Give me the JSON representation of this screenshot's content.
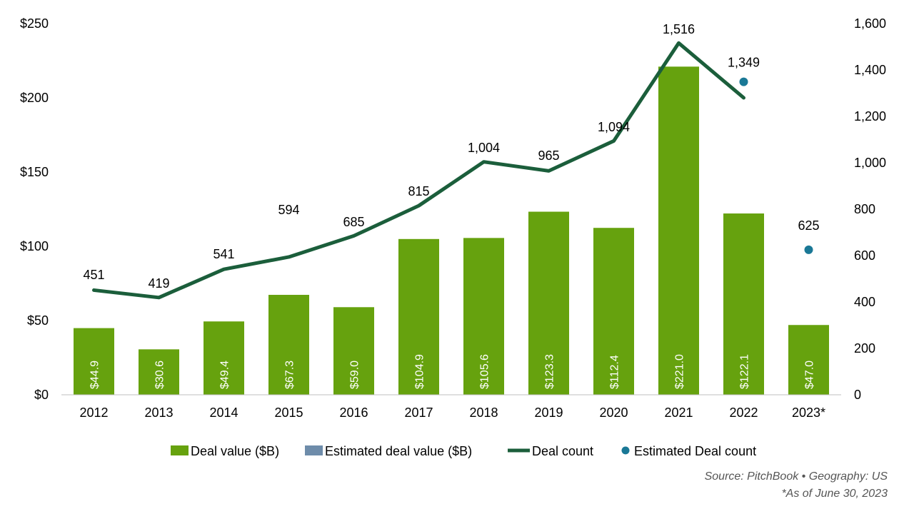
{
  "chart_data": {
    "type": "bar",
    "categories": [
      "2012",
      "2013",
      "2014",
      "2015",
      "2016",
      "2017",
      "2018",
      "2019",
      "2020",
      "2021",
      "2022",
      "2023*"
    ],
    "series": [
      {
        "name": "Deal value ($B)",
        "type": "bar",
        "axis": "left",
        "color": "#66a20e",
        "values": [
          44.9,
          30.6,
          49.4,
          67.3,
          59.0,
          104.9,
          105.6,
          123.3,
          112.4,
          221.0,
          122.1,
          47.0
        ],
        "labels": [
          "$44.9",
          "$30.6",
          "$49.4",
          "$67.3",
          "$59.0",
          "$104.9",
          "$105.6",
          "$123.3",
          "$112.4",
          "$221.0",
          "$122.1",
          "$47.0"
        ]
      },
      {
        "name": "Estimated deal value ($B)",
        "type": "bar",
        "axis": "left",
        "color": "#6e8caa",
        "values": [
          null,
          null,
          null,
          null,
          null,
          null,
          null,
          null,
          null,
          null,
          null,
          null
        ]
      },
      {
        "name": "Deal count",
        "type": "line",
        "axis": "right",
        "color": "#1b5e3b",
        "values": [
          451,
          419,
          541,
          594,
          685,
          815,
          1004,
          965,
          1094,
          1516,
          1280,
          null
        ],
        "labels": [
          "451",
          "419",
          "541",
          "594",
          "685",
          "815",
          "1,004",
          "965",
          "1,094",
          "1,516",
          "",
          ""
        ]
      },
      {
        "name": "Estimated Deal count",
        "type": "scatter",
        "axis": "right",
        "color": "#1a7896",
        "values": [
          null,
          null,
          null,
          null,
          null,
          null,
          null,
          null,
          null,
          null,
          1349,
          625
        ],
        "labels": [
          "",
          "",
          "",
          "",
          "",
          "",
          "",
          "",
          "",
          "",
          "1,349",
          "625"
        ]
      }
    ],
    "left_axis": {
      "ylim": [
        0,
        250
      ],
      "ticks": [
        0,
        50,
        100,
        150,
        200,
        250
      ],
      "tick_labels": [
        "$0",
        "$50",
        "$100",
        "$150",
        "$200",
        "$250"
      ]
    },
    "right_axis": {
      "ylim": [
        0,
        1600
      ],
      "ticks": [
        0,
        200,
        400,
        600,
        800,
        1000,
        1200,
        1400,
        1600
      ],
      "tick_labels": [
        "0",
        "200",
        "400",
        "600",
        "800",
        "1,000",
        "1,200",
        "1,400",
        "1,600"
      ]
    },
    "grid": false,
    "legend_position": "bottom"
  },
  "source_note": "Source: PitchBook •  Geography: US",
  "footnote": "*As of June 30, 2023"
}
